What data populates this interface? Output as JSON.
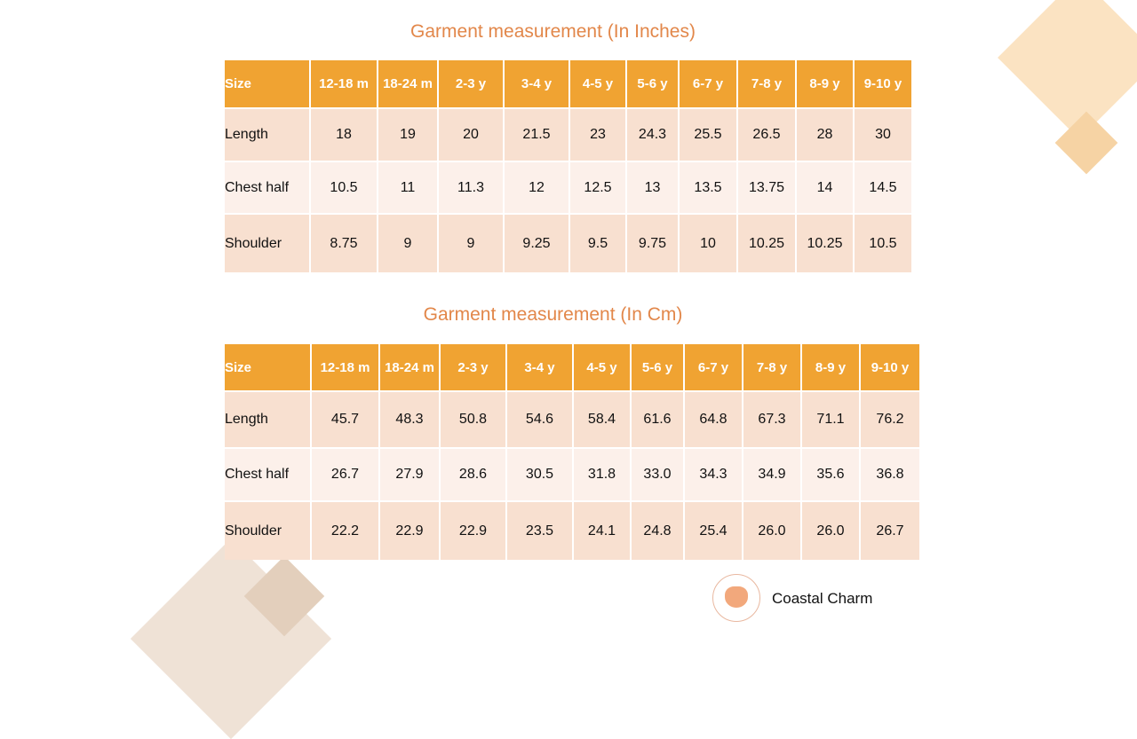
{
  "colors": {
    "header": "#F0A332",
    "row_odd": "#F8E0D0",
    "row_even": "#FCF0EA",
    "title": "#E2874A"
  },
  "tables": [
    {
      "title": "Garment measurement (In Inches)",
      "headers": [
        "Size",
        "12-18 m",
        "18-24 m",
        "2-3 y",
        "3-4 y",
        "4-5 y",
        "5-6 y",
        "6-7 y",
        "7-8 y",
        "8-9 y",
        "9-10 y"
      ],
      "rows": [
        [
          "Length",
          "18",
          "19",
          "20",
          "21.5",
          "23",
          "24.3",
          "25.5",
          "26.5",
          "28",
          "30"
        ],
        [
          "Chest half",
          "10.5",
          "11",
          "11.3",
          "12",
          "12.5",
          "13",
          "13.5",
          "13.75",
          "14",
          "14.5"
        ],
        [
          "Shoulder",
          "8.75",
          "9",
          "9",
          "9.25",
          "9.5",
          "9.75",
          "10",
          "10.25",
          "10.25",
          "10.5"
        ]
      ]
    },
    {
      "title": "Garment measurement (In Cm)",
      "headers": [
        "Size",
        "12-18 m",
        "18-24 m",
        "2-3 y",
        "3-4 y",
        "4-5 y",
        "5-6 y",
        "6-7 y",
        "7-8 y",
        "8-9 y",
        "9-10 y"
      ],
      "rows": [
        [
          "Length",
          "45.7",
          "48.3",
          "50.8",
          "54.6",
          "58.4",
          "61.6",
          "64.8",
          "67.3",
          "71.1",
          "76.2"
        ],
        [
          "Chest half",
          "26.7",
          "27.9",
          "28.6",
          "30.5",
          "31.8",
          "33.0",
          "34.3",
          "34.9",
          "35.6",
          "36.8"
        ],
        [
          "Shoulder",
          "22.2",
          "22.9",
          "22.9",
          "23.5",
          "24.1",
          "24.8",
          "25.4",
          "26.0",
          "26.0",
          "26.7"
        ]
      ]
    }
  ],
  "brand": {
    "name": "Coastal Charm",
    "logo_icon": "heart-logo-icon"
  }
}
